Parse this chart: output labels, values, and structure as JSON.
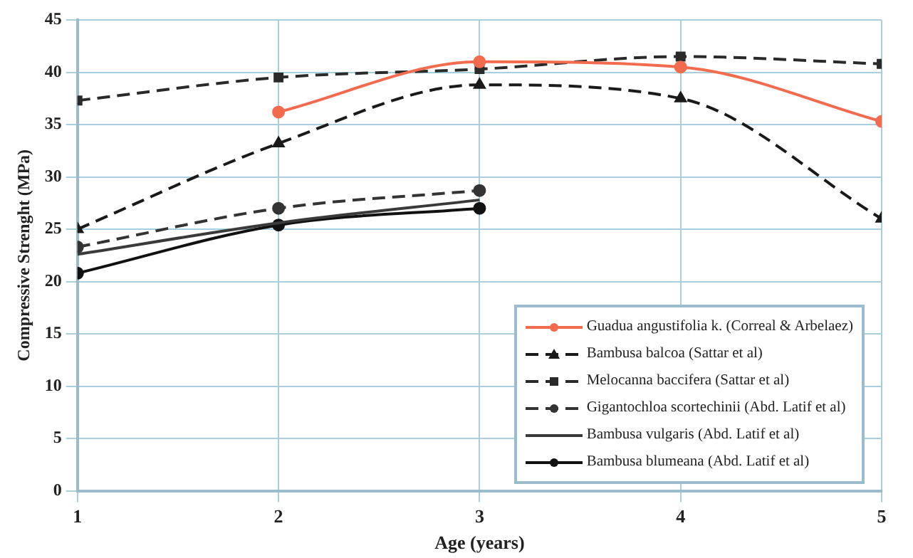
{
  "chart_data": {
    "type": "line",
    "xlabel": "Age (years)",
    "ylabel": "Compressive Strenght (MPa)",
    "x": [
      1,
      2,
      3,
      4,
      5
    ],
    "xlim": [
      1,
      5
    ],
    "xticks": [
      1,
      2,
      3,
      4,
      5
    ],
    "ylim": [
      0,
      45
    ],
    "yticks": [
      0,
      5,
      10,
      15,
      20,
      25,
      30,
      35,
      40,
      45
    ],
    "grid": true,
    "legend": "bottom right",
    "series": [
      {
        "name": "Guadua angustifolia k. (Correal & Arbelaez)",
        "color": "#f26b4f",
        "values": [
          null,
          36.2,
          41,
          40.5,
          35.3
        ],
        "marker": "circle",
        "line_style": "solid"
      },
      {
        "name": "Bambusa balcoa (Sattar et al)",
        "color": "#1a1a1a",
        "values": [
          25,
          33.2,
          38.8,
          37.5,
          26
        ],
        "marker": "triangle",
        "line_style": "dashed"
      },
      {
        "name": "Melocanna baccifera (Sattar et al)",
        "color": "#2a2a2a",
        "values": [
          37.3,
          39.5,
          40.3,
          41.5,
          40.8
        ],
        "marker": "square",
        "line_style": "dashed"
      },
      {
        "name": "Gigantochloa scortechinii (Abd. Latif et al)",
        "color": "#333333",
        "values": [
          23.3,
          27,
          28.7,
          null,
          null
        ],
        "marker": "circle",
        "line_style": "dashed"
      },
      {
        "name": "Bambusa vulgaris (Abd. Latif et al)",
        "color": "#3a3a3a",
        "values": [
          22.6,
          25.6,
          27.8,
          null,
          null
        ],
        "marker": "none",
        "line_style": "solid"
      },
      {
        "name": "Bambusa blumeana (Abd. Latif et al)",
        "color": "#111111",
        "values": [
          20.8,
          25.4,
          27,
          null,
          null
        ],
        "marker": "circle",
        "line_style": "solid"
      }
    ]
  }
}
